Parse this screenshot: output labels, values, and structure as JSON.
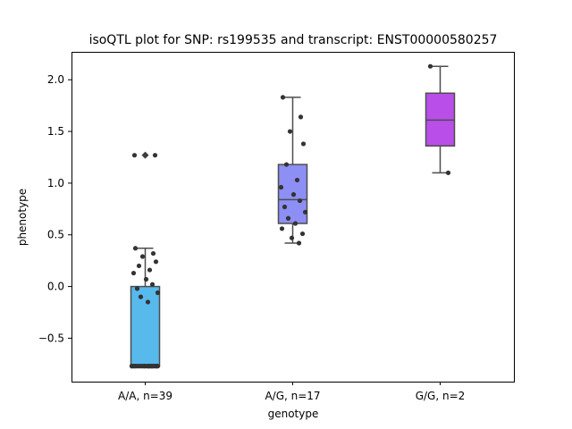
{
  "chart_data": {
    "type": "box",
    "title": "isoQTL plot for SNP: rs199535 and transcript: ENST00000580257",
    "xlabel": "genotype",
    "ylabel": "phenotype",
    "ylim": [
      -0.92,
      2.27
    ],
    "yticks": [
      -0.5,
      0.0,
      0.5,
      1.0,
      1.5,
      2.0
    ],
    "ytick_labels": [
      "−0.5",
      "0.0",
      "0.5",
      "1.0",
      "1.5",
      "2.0"
    ],
    "grid": false,
    "categories": [
      "A/A, n=39",
      "A/G, n=17",
      "G/G, n=2"
    ],
    "boxes": [
      {
        "category": "A/A, n=39",
        "color": "#57b9ec",
        "min": -0.77,
        "q1": -0.77,
        "median": -0.77,
        "q3": 0.0,
        "max": 0.37,
        "outliers": [
          1.27
        ]
      },
      {
        "category": "A/G, n=17",
        "color": "#8d8ff5",
        "min": 0.42,
        "q1": 0.61,
        "median": 0.84,
        "q3": 1.18,
        "max": 1.83,
        "outliers": []
      },
      {
        "category": "G/G, n=2",
        "color": "#b94ee9",
        "min": 1.1,
        "q1": 1.36,
        "median": 1.61,
        "q3": 1.87,
        "max": 2.13,
        "outliers": []
      }
    ],
    "points": [
      {
        "category": "A/A, n=39",
        "values": [
          0.37,
          0.32,
          0.29,
          0.24,
          0.2,
          0.16,
          0.13,
          0.07,
          0.02,
          -0.02,
          -0.06,
          -0.1,
          -0.15,
          1.27,
          1.27,
          -0.77,
          -0.77,
          -0.77,
          -0.77,
          -0.77,
          -0.77,
          -0.77,
          -0.77,
          -0.77,
          -0.77,
          -0.77,
          -0.77,
          -0.77,
          -0.77,
          -0.77,
          -0.77,
          -0.77,
          -0.77,
          -0.77,
          -0.77,
          -0.77,
          -0.77,
          -0.77,
          -0.77
        ]
      },
      {
        "category": "A/G, n=17",
        "values": [
          1.83,
          1.64,
          1.5,
          1.38,
          1.18,
          1.03,
          0.96,
          0.89,
          0.83,
          0.77,
          0.72,
          0.66,
          0.61,
          0.56,
          0.51,
          0.47,
          0.42
        ]
      },
      {
        "category": "G/G, n=2",
        "values": [
          2.13,
          1.1
        ]
      }
    ]
  }
}
